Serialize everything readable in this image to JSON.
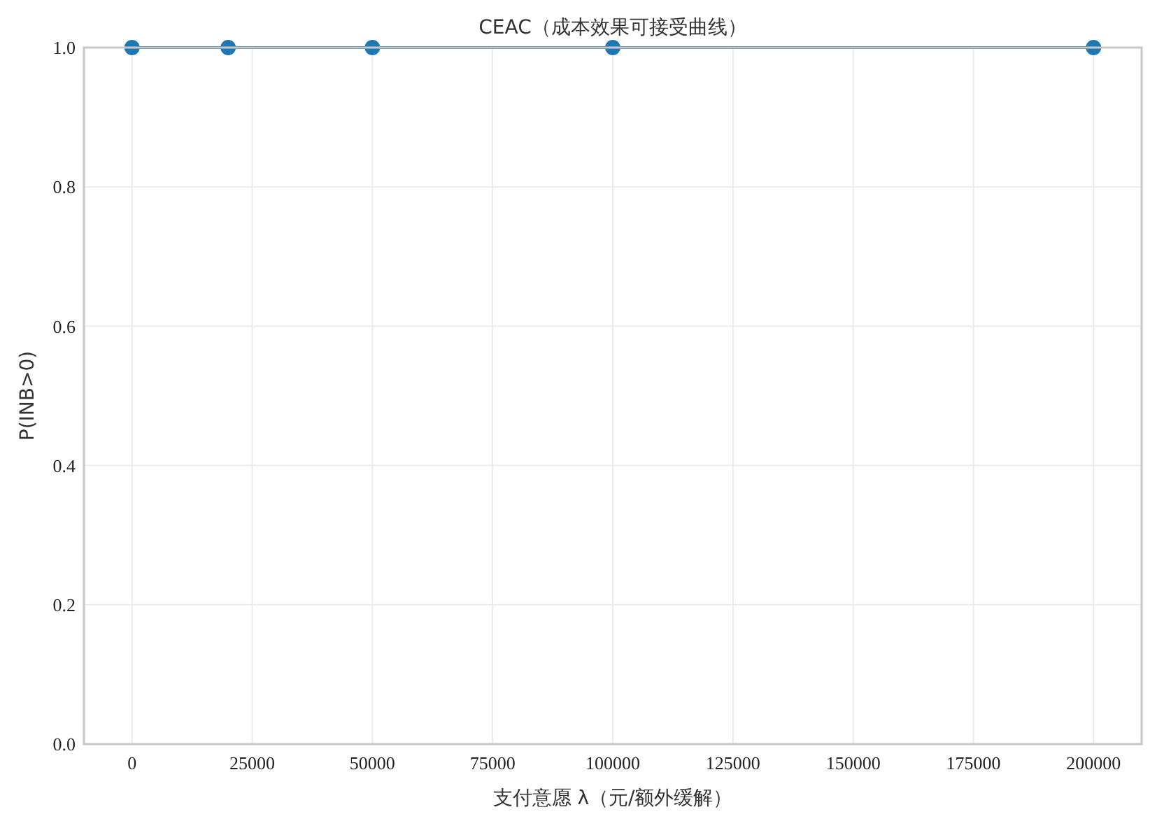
{
  "chart_data": {
    "type": "line",
    "title": "CEAC（成本效果可接受曲线）",
    "xlabel": "支付意愿 λ（元/额外缓解）",
    "ylabel": "P(INB>0)",
    "x": [
      0,
      20000,
      50000,
      100000,
      200000
    ],
    "series": [
      {
        "color": "#1f77b4",
        "values": [
          1.0,
          1.0,
          1.0,
          1.0,
          1.0
        ]
      }
    ],
    "xlim": [
      -10000,
      210000
    ],
    "xticks": [
      0,
      25000,
      50000,
      75000,
      100000,
      125000,
      150000,
      175000,
      200000
    ],
    "ylim": [
      0,
      1
    ],
    "yticks": [
      {
        "value": 0,
        "label": "0.0"
      },
      {
        "value": 0.2,
        "label": "0.2"
      },
      {
        "value": 0.4,
        "label": "0.4"
      },
      {
        "value": 0.6,
        "label": "0.6"
      },
      {
        "value": 0.8,
        "label": "0.8"
      },
      {
        "value": 1,
        "label": "1.0"
      }
    ],
    "grid": true,
    "marker": "circle",
    "line_style": "solid"
  }
}
